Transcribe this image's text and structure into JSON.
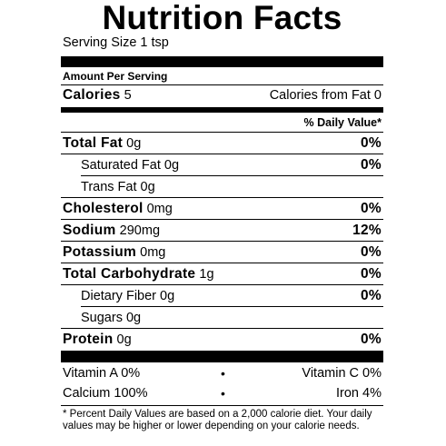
{
  "title": "Nutrition Facts",
  "serving": "Serving Size 1 tsp",
  "amount_per_serving": "Amount Per Serving",
  "calories": {
    "label": "Calories",
    "value": "5",
    "from_fat": "Calories from Fat 0"
  },
  "daily_value_header": "% Daily Value*",
  "nutrients": [
    {
      "label": "Total Fat",
      "amount": "0g",
      "pct": "0%"
    },
    {
      "label": "Saturated Fat",
      "amount": "0g",
      "pct": "0%"
    },
    {
      "label": "Trans Fat",
      "amount": "0g",
      "pct": ""
    },
    {
      "label": "Cholesterol",
      "amount": "0mg",
      "pct": "0%"
    },
    {
      "label": "Sodium",
      "amount": "290mg",
      "pct": "12%"
    },
    {
      "label": "Potassium",
      "amount": "0mg",
      "pct": "0%"
    },
    {
      "label": "Total Carbohydrate",
      "amount": "1g",
      "pct": "0%"
    },
    {
      "label": "Dietary Fiber",
      "amount": "0g",
      "pct": "0%"
    },
    {
      "label": "Sugars",
      "amount": "0g",
      "pct": ""
    },
    {
      "label": "Protein",
      "amount": "0g",
      "pct": "0%"
    }
  ],
  "vitamins": [
    {
      "left": "Vitamin A  0%",
      "dot": "•",
      "right": "Vitamin C  0%"
    },
    {
      "left": "Calcium  100%",
      "dot": "•",
      "right": "Iron  4%"
    }
  ],
  "footnote": "* Percent Daily Values are based on a 2,000 calorie diet. Your daily values may be higher or lower depending on your calorie needs."
}
